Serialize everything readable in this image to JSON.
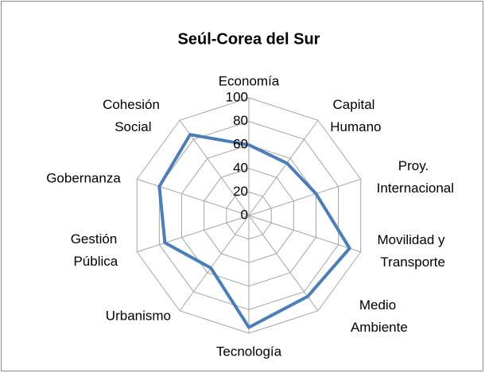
{
  "chart_data": {
    "type": "radar",
    "title": "Seúl-Corea del Sur",
    "categories": [
      "Economía",
      "Capital Humano",
      "Proy. Internacional",
      "Movilidad y Transporte",
      "Medio Ambiente",
      "Tecnología",
      "Urbanismo",
      "Gestión Pública",
      "Gobernanza",
      "Cohesión Social"
    ],
    "values": [
      60,
      55,
      60,
      90,
      85,
      95,
      55,
      75,
      80,
      85
    ],
    "color": "#4a7ebb",
    "ylim": [
      0,
      100
    ],
    "yticks": [
      0,
      20,
      40,
      60,
      80,
      100
    ],
    "grid": true
  }
}
